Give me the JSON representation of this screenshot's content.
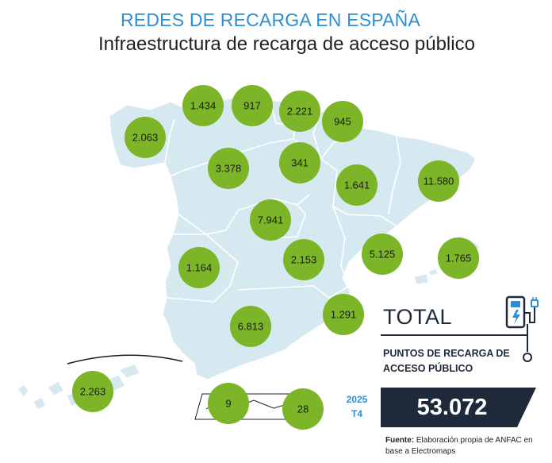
{
  "header": {
    "title": "REDES DE RECARGA EN ESPAÑA",
    "subtitle": "Infraestructura de recarga de acceso público"
  },
  "chart_data": {
    "type": "map",
    "title": "REDES DE RECARGA EN ESPAÑA",
    "subtitle": "Infraestructura de recarga de acceso público",
    "region_values": [
      {
        "region": "Galicia",
        "value": "2.063"
      },
      {
        "region": "Asturias",
        "value": "1.434"
      },
      {
        "region": "Cantabria",
        "value": "917"
      },
      {
        "region": "País Vasco",
        "value": "2.221"
      },
      {
        "region": "Navarra",
        "value": "945"
      },
      {
        "region": "La Rioja",
        "value": "341"
      },
      {
        "region": "Castilla y León",
        "value": "3.378"
      },
      {
        "region": "Aragón",
        "value": "1.641"
      },
      {
        "region": "Cataluña",
        "value": "11.580"
      },
      {
        "region": "Madrid",
        "value": "7.941"
      },
      {
        "region": "Extremadura",
        "value": "1.164"
      },
      {
        "region": "Castilla-La Mancha",
        "value": "2.153"
      },
      {
        "region": "Comunidad Valenciana",
        "value": "5.125"
      },
      {
        "region": "Baleares",
        "value": "1.765"
      },
      {
        "region": "Murcia",
        "value": "1.291"
      },
      {
        "region": "Andalucía",
        "value": "6.813"
      },
      {
        "region": "Canarias",
        "value": "2.263"
      },
      {
        "region": "Ceuta",
        "value": "9"
      },
      {
        "region": "Melilla",
        "value": "28"
      }
    ]
  },
  "total": {
    "label": "TOTAL",
    "description": "PUNTOS DE RECARGA DE ACCESO PÚBLICO",
    "period_year": "2025",
    "period_quarter": "T4",
    "value": "53.072"
  },
  "source": {
    "label": "Fuente:",
    "text": " Elaboración propia de ANFAC en base a Electromaps"
  },
  "colors": {
    "bubble": "#7cb527",
    "map_fill": "#d6e9f0",
    "map_border": "#ffffff",
    "title": "#2b8fd6",
    "value_box": "#1e2a3a"
  },
  "icons": [
    "ev-charger-icon"
  ]
}
